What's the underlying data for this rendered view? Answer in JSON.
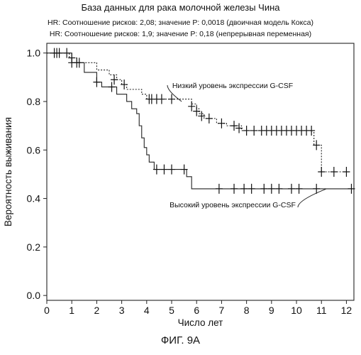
{
  "header": {
    "title": "База данных для рака молочной железы Чина",
    "subtitle1": "HR: Соотношение рисков: 2,08; значение P: 0,0018 (двоичная модель Кокса)",
    "subtitle2": "HR: Соотношение рисков: 1,9; значение P: 0,18 (непрерывная переменная)"
  },
  "figure_label": "ФИГ. 9A",
  "chart_data": {
    "type": "line",
    "xlabel": "Число лет",
    "ylabel": "Вероятность выживания",
    "xlim": [
      0,
      12.3
    ],
    "ylim": [
      -0.02,
      1.04
    ],
    "xticks": [
      "0",
      "1",
      "2",
      "3",
      "4",
      "5",
      "6",
      "7",
      "8",
      "9",
      "10",
      "11",
      "12"
    ],
    "yticks": [
      "0.0",
      "0.2",
      "0.4",
      "0.6",
      "0.8",
      "1.0"
    ],
    "grid": false,
    "series": [
      {
        "name": "Низкий уровень экспрессии G-CSF",
        "style": "dotted",
        "steps": [
          [
            0,
            1.0
          ],
          [
            0.9,
            0.98
          ],
          [
            1.2,
            0.96
          ],
          [
            2.0,
            0.93
          ],
          [
            2.5,
            0.91
          ],
          [
            2.8,
            0.89
          ],
          [
            3.0,
            0.87
          ],
          [
            3.2,
            0.85
          ],
          [
            3.8,
            0.83
          ],
          [
            4.0,
            0.81
          ],
          [
            5.8,
            0.79
          ],
          [
            6.0,
            0.77
          ],
          [
            6.1,
            0.75
          ],
          [
            6.3,
            0.73
          ],
          [
            6.8,
            0.71
          ],
          [
            7.2,
            0.7
          ],
          [
            7.8,
            0.68
          ],
          [
            10.7,
            0.62
          ],
          [
            11.0,
            0.51
          ],
          [
            12.0,
            0.51
          ]
        ],
        "censors": [
          [
            0.3,
            1.0
          ],
          [
            0.5,
            1.0
          ],
          [
            0.8,
            1.0
          ],
          [
            1.0,
            0.98
          ],
          [
            1.3,
            0.96
          ],
          [
            2.7,
            0.89
          ],
          [
            3.1,
            0.87
          ],
          [
            4.1,
            0.81
          ],
          [
            4.2,
            0.81
          ],
          [
            4.4,
            0.81
          ],
          [
            4.6,
            0.81
          ],
          [
            5.0,
            0.81
          ],
          [
            5.8,
            0.78
          ],
          [
            6.0,
            0.76
          ],
          [
            6.2,
            0.74
          ],
          [
            6.5,
            0.73
          ],
          [
            7.0,
            0.71
          ],
          [
            7.5,
            0.7
          ],
          [
            7.7,
            0.69
          ],
          [
            8.0,
            0.68
          ],
          [
            8.3,
            0.68
          ],
          [
            8.6,
            0.68
          ],
          [
            8.8,
            0.68
          ],
          [
            9.0,
            0.68
          ],
          [
            9.2,
            0.68
          ],
          [
            9.4,
            0.68
          ],
          [
            9.6,
            0.68
          ],
          [
            9.8,
            0.68
          ],
          [
            10.0,
            0.68
          ],
          [
            10.2,
            0.68
          ],
          [
            10.4,
            0.68
          ],
          [
            10.6,
            0.68
          ],
          [
            10.8,
            0.62
          ],
          [
            11.0,
            0.51
          ],
          [
            11.5,
            0.51
          ],
          [
            12.0,
            0.51
          ]
        ]
      },
      {
        "name": "Высокий уровень экспрессии G-CSF",
        "style": "solid",
        "steps": [
          [
            0,
            1.0
          ],
          [
            1.0,
            0.96
          ],
          [
            1.5,
            0.92
          ],
          [
            2.0,
            0.88
          ],
          [
            2.2,
            0.86
          ],
          [
            2.8,
            0.83
          ],
          [
            3.2,
            0.8
          ],
          [
            3.4,
            0.77
          ],
          [
            3.6,
            0.75
          ],
          [
            3.7,
            0.7
          ],
          [
            3.8,
            0.65
          ],
          [
            3.9,
            0.61
          ],
          [
            4.0,
            0.58
          ],
          [
            4.1,
            0.55
          ],
          [
            4.3,
            0.52
          ],
          [
            5.6,
            0.49
          ],
          [
            5.8,
            0.44
          ],
          [
            12.2,
            0.44
          ]
        ],
        "censors": [
          [
            0.4,
            1.0
          ],
          [
            1.0,
            0.96
          ],
          [
            1.2,
            0.96
          ],
          [
            2.0,
            0.88
          ],
          [
            2.6,
            0.86
          ],
          [
            4.4,
            0.52
          ],
          [
            4.7,
            0.52
          ],
          [
            5.0,
            0.52
          ],
          [
            5.5,
            0.52
          ],
          [
            6.9,
            0.44
          ],
          [
            7.5,
            0.44
          ],
          [
            7.9,
            0.44
          ],
          [
            8.2,
            0.44
          ],
          [
            8.7,
            0.44
          ],
          [
            9.0,
            0.44
          ],
          [
            9.3,
            0.44
          ],
          [
            9.8,
            0.44
          ],
          [
            10.1,
            0.44
          ],
          [
            10.8,
            0.44
          ],
          [
            12.2,
            0.44
          ]
        ]
      }
    ],
    "annotations": [
      {
        "text": "Низкий уровень экспрессии G-CSF",
        "series": 0,
        "point": [
          5.4,
          0.8
        ]
      },
      {
        "text": "Высокий уровень экспрессии G-CSF",
        "series": 1,
        "point": [
          11.2,
          0.44
        ]
      }
    ]
  }
}
